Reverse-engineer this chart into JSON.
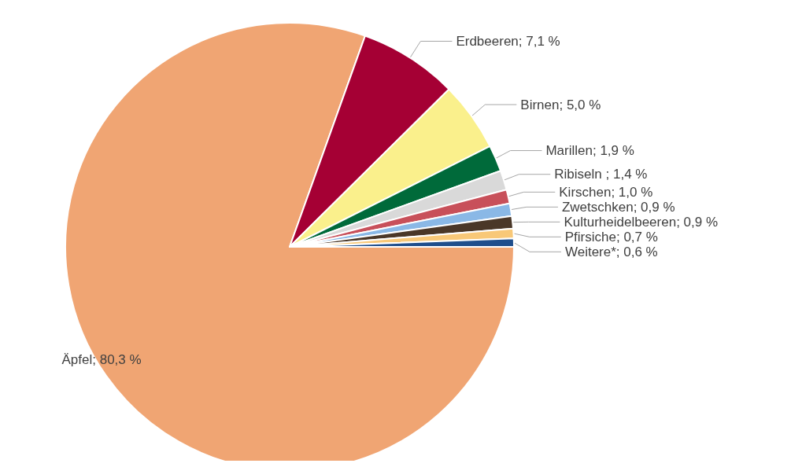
{
  "chart_data": {
    "type": "pie",
    "categories": [
      "Äpfel",
      "Erdbeeren",
      "Birnen",
      "Marillen",
      "Ribiseln ",
      "Kirschen",
      "Zwetschken",
      "Kulturheidelbeeren",
      "Pfirsiche",
      "Weitere*"
    ],
    "values": [
      80.3,
      7.1,
      5.0,
      1.9,
      1.4,
      1.0,
      0.9,
      0.9,
      0.7,
      0.6
    ],
    "value_labels": [
      "80,3 %",
      "7,1 %",
      "5,0 %",
      "1,9 %",
      "1,4 %",
      "1,0 %",
      "0,9 %",
      "0,9 %",
      "0,7 %",
      "0,6 %"
    ],
    "colors": [
      "#f0a573",
      "#a50034",
      "#faf08c",
      "#006a3a",
      "#d9d9d9",
      "#c8505a",
      "#8ab8e6",
      "#4a3728",
      "#f8c878",
      "#1f4e8c"
    ],
    "legend": false
  }
}
